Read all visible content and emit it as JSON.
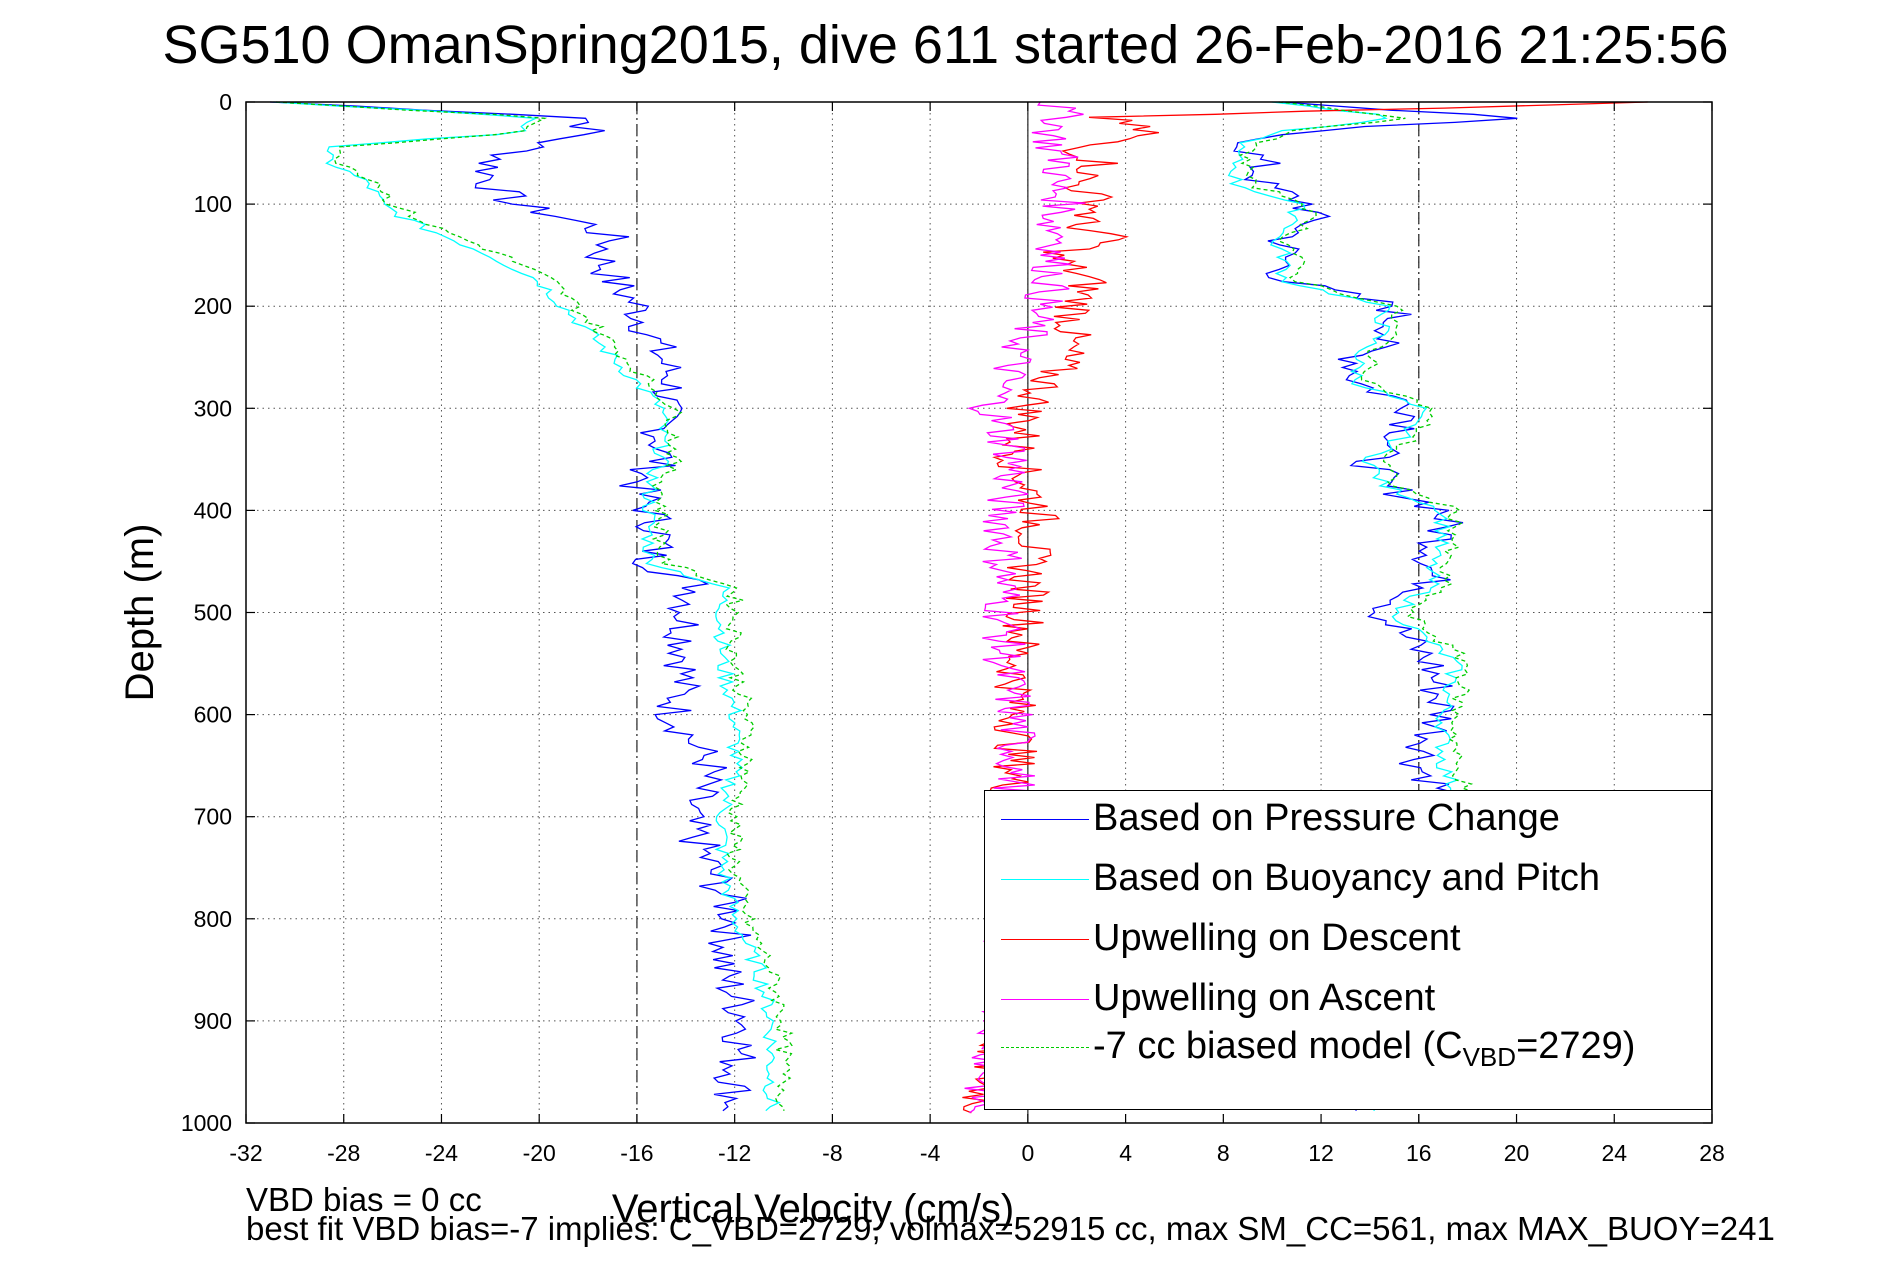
{
  "chart_data": {
    "type": "line",
    "title": "SG510 OmanSpring2015, dive 611 started 26-Feb-2016 21:25:56",
    "xlabel": "Vertical Velocity (cm/s)",
    "ylabel": "Depth (m)",
    "xlim": [
      -32,
      28
    ],
    "ylim": [
      0,
      1000
    ],
    "y_reversed": true,
    "grid": true,
    "xticks": [
      "-32",
      "-28",
      "-24",
      "-20",
      "-16",
      "-12",
      "-8",
      "-4",
      "0",
      "4",
      "8",
      "12",
      "16",
      "20",
      "24",
      "28"
    ],
    "yticks": [
      "0",
      "100",
      "200",
      "300",
      "400",
      "500",
      "600",
      "700",
      "800",
      "900",
      "1000"
    ],
    "reference_lines_x": [
      -16,
      0,
      16
    ],
    "legend_placement": "bottom-right",
    "series": [
      {
        "name": "Based on Pressure Change",
        "color": "#0000ff",
        "depth": [
          0,
          15,
          30,
          45,
          60,
          80,
          100,
          120,
          135,
          150,
          175,
          200,
          225,
          250,
          275,
          300,
          325,
          350,
          375,
          400,
          425,
          450,
          475,
          500,
          550,
          600,
          650,
          700,
          750,
          800,
          850,
          900,
          950,
          980
        ],
        "descent": [
          -31,
          -18,
          -18,
          -20.5,
          -22,
          -22,
          -21,
          -18,
          -17,
          -17.5,
          -17,
          -16,
          -15.5,
          -15,
          -14.5,
          -15,
          -15,
          -15,
          -16,
          -15.5,
          -15,
          -15.5,
          -13.5,
          -14,
          -14,
          -14.5,
          -13,
          -14,
          -13,
          -12,
          -12.5,
          -11.5,
          -12,
          -12
        ],
        "ascent": [
          10,
          20,
          10,
          9,
          9.5,
          9.5,
          11.5,
          11.5,
          10.5,
          10.5,
          10.5,
          15,
          15,
          13.5,
          13.5,
          16,
          15.5,
          14,
          14.5,
          17,
          17,
          16.5,
          16.5,
          14.5,
          16.5,
          17,
          16,
          18,
          17,
          16,
          16,
          16,
          15.5,
          14
        ]
      },
      {
        "name": "Based on Buoyancy and Pitch",
        "color": "#00ffff",
        "depth": [
          0,
          15,
          30,
          45,
          60,
          80,
          100,
          120,
          135,
          150,
          175,
          200,
          225,
          250,
          275,
          300,
          325,
          350,
          375,
          400,
          425,
          450,
          475,
          500,
          550,
          600,
          650,
          700,
          750,
          800,
          850,
          900,
          950,
          980
        ],
        "descent": [
          -31,
          -20,
          -21,
          -29,
          -28.5,
          -27,
          -26.5,
          -25,
          -23.5,
          -22,
          -20,
          -19,
          -18,
          -17,
          -16,
          -15,
          -15,
          -15,
          -15.5,
          -15.5,
          -15.5,
          -15.5,
          -12.5,
          -12.5,
          -12.5,
          -12,
          -12,
          -12.5,
          -12.5,
          -12,
          -11,
          -10.5,
          -10.5,
          -10.5
        ],
        "ascent": [
          10,
          15,
          10,
          8.5,
          8.5,
          8.5,
          11,
          11,
          10,
          10.5,
          10.5,
          14.5,
          14.5,
          13.5,
          13.5,
          16,
          15.5,
          14,
          14.5,
          17,
          17,
          16.5,
          16.5,
          15,
          17.5,
          17,
          17,
          18,
          17,
          16,
          16,
          16,
          15.5,
          14
        ]
      },
      {
        "name": "Upwelling on Descent",
        "color": "#ff0000",
        "depth": [
          0,
          15,
          30,
          45,
          60,
          80,
          100,
          120,
          135,
          150,
          175,
          200,
          250,
          300,
          350,
          400,
          450,
          500,
          550,
          600,
          650,
          700,
          800,
          900,
          980
        ],
        "values": [
          25,
          3,
          5,
          2,
          3,
          2,
          3,
          2,
          3.5,
          1,
          2.5,
          2,
          1.5,
          0,
          -0.5,
          0.5,
          0,
          0,
          -0.5,
          -0.5,
          -0.5,
          -1,
          -0.5,
          -1,
          -2
        ]
      },
      {
        "name": "Upwelling on Ascent",
        "color": "#ff00ff",
        "depth": [
          0,
          15,
          30,
          45,
          60,
          80,
          100,
          120,
          135,
          150,
          175,
          200,
          250,
          300,
          350,
          400,
          450,
          500,
          550,
          600,
          650,
          700,
          800,
          900,
          980
        ],
        "values": [
          1,
          1.5,
          1,
          1,
          1.5,
          1,
          1.5,
          1,
          1.5,
          1,
          1,
          0.5,
          -0.5,
          -1.5,
          -0.5,
          -1,
          -1,
          -1,
          -1,
          -0.5,
          -0.5,
          -0.5,
          -1,
          -1,
          -2
        ]
      },
      {
        "name": "-7 cc biased model (C_VBD=2729)",
        "color": "#00cc00",
        "dashed": true,
        "depth": [
          0,
          15,
          30,
          45,
          60,
          80,
          100,
          120,
          135,
          150,
          175,
          200,
          225,
          250,
          275,
          300,
          325,
          350,
          375,
          400,
          425,
          450,
          475,
          500,
          550,
          600,
          650,
          700,
          750,
          800,
          850,
          900,
          950,
          980
        ],
        "descent": [
          -31,
          -20,
          -20.5,
          -28.5,
          -28,
          -26.5,
          -26,
          -24.5,
          -23,
          -21.5,
          -19.5,
          -18.5,
          -17.5,
          -16.5,
          -15.5,
          -14.5,
          -14.5,
          -14.5,
          -15,
          -15,
          -15,
          -15,
          -12,
          -12,
          -12,
          -11.5,
          -11.5,
          -12,
          -12,
          -11.5,
          -10.5,
          -10,
          -10,
          -10
        ],
        "ascent": [
          10.5,
          15.5,
          10.5,
          9,
          9,
          9,
          11.5,
          11.5,
          10.5,
          11,
          11,
          15,
          15,
          14,
          14,
          16.5,
          16,
          14.5,
          15,
          17.5,
          17.5,
          17,
          17,
          15.5,
          18,
          17.5,
          17.5,
          18.5,
          17.5,
          16.5,
          16.5,
          16.5,
          16,
          14.5
        ]
      }
    ]
  },
  "legend": {
    "items": [
      {
        "label": "Based on Pressure Change",
        "color": "#0000ff",
        "dashed": false
      },
      {
        "label": "Based on Buoyancy and Pitch",
        "color": "#00ffff",
        "dashed": false
      },
      {
        "label": "Upwelling on Descent",
        "color": "#ff0000",
        "dashed": false
      },
      {
        "label": "Upwelling on Ascent",
        "color": "#ff00ff",
        "dashed": false
      }
    ],
    "model_label_prefix": "-7 cc biased model (C",
    "model_label_sub": "VBD",
    "model_label_suffix": "=2729)",
    "model_color": "#00cc00"
  },
  "footer": {
    "line1": "VBD bias = 0 cc",
    "line2": "best fit VBD bias=-7 implies: C_VBD=2729, volmax=52915 cc, max SM_CC=561, max MAX_BUOY=241"
  }
}
